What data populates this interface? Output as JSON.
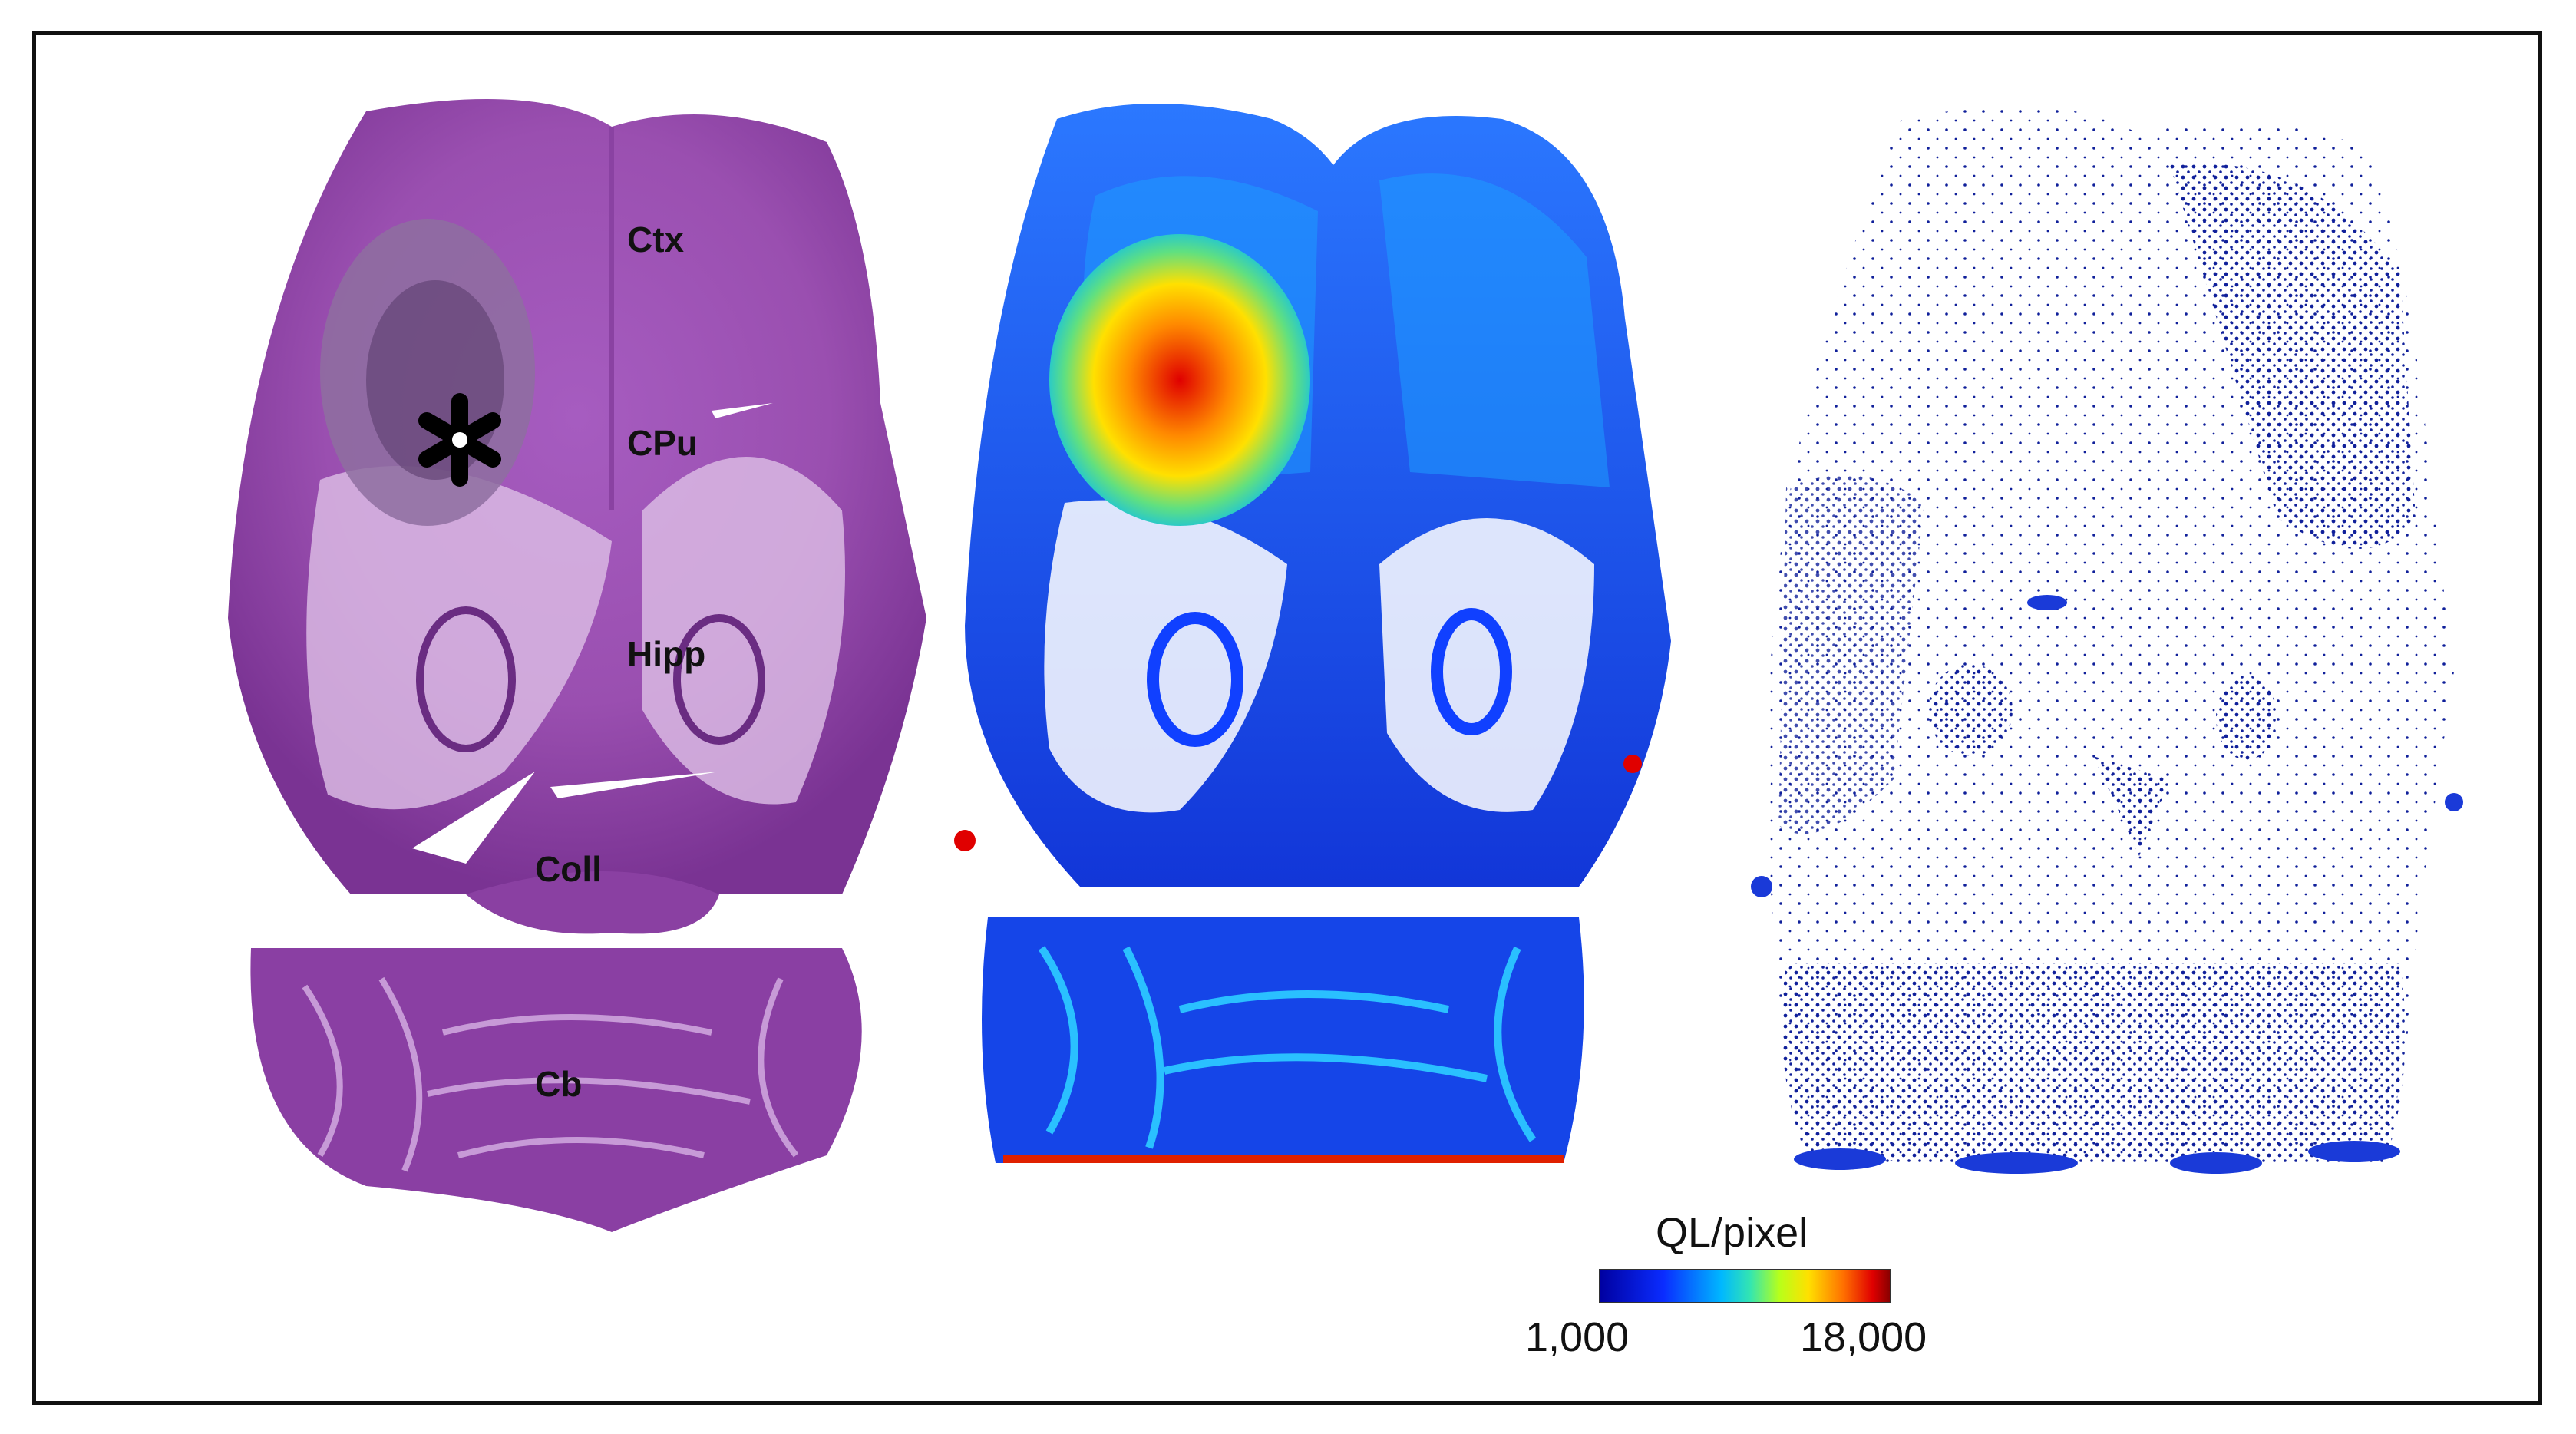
{
  "panels": {
    "histology": {
      "labels": {
        "ctx": "Ctx",
        "cpu": "CPu",
        "hipp": "Hipp",
        "coll": "Coll",
        "cb": "Cb"
      }
    }
  },
  "colorbar": {
    "title": "QL/pixel",
    "min_label": "1,000",
    "max_label": "18,000",
    "colors": [
      "#0000a0",
      "#0a2cff",
      "#00b8ff",
      "#34e6b0",
      "#b8ff1a",
      "#ffe000",
      "#ff7000",
      "#e00000",
      "#8a0000"
    ]
  },
  "colors": {
    "he_stain": "#9a4fb0",
    "he_dark": "#7a3393",
    "map_background": "#1a5cff",
    "scatter_dots": "#1020a0",
    "frame": "#111111"
  }
}
